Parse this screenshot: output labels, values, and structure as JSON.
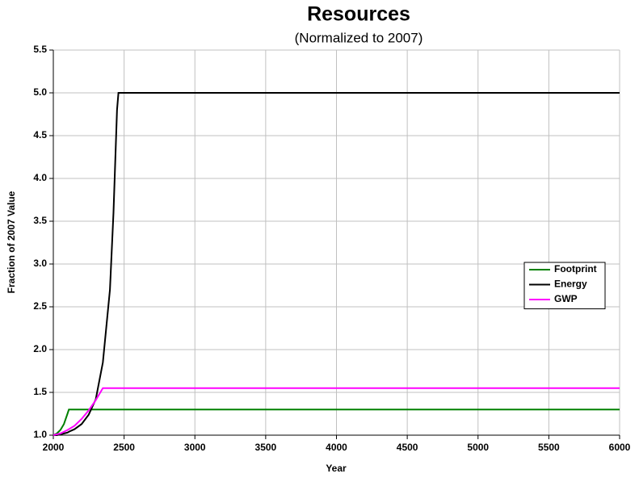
{
  "chart_data": {
    "type": "line",
    "title": "Resources",
    "subtitle": "(Normalized to 2007)",
    "x_label": "Year",
    "y_label": "Fraction of 2007 Value",
    "x": [
      2000,
      2025,
      2050,
      2075,
      2100,
      2110,
      2150,
      2200,
      2250,
      2300,
      2350,
      2400,
      2425,
      2450,
      2460,
      2500,
      6000
    ],
    "series": [
      {
        "name": "Footprint",
        "color": "#008000",
        "values": [
          1.0,
          1.02,
          1.06,
          1.13,
          1.25,
          1.3,
          1.3,
          1.3,
          1.3,
          1.3,
          1.3,
          1.3,
          1.3,
          1.3,
          1.3,
          1.3,
          1.3
        ]
      },
      {
        "name": "Energy",
        "color": "#000000",
        "values": [
          1.0,
          1.0,
          1.01,
          1.02,
          1.03,
          1.04,
          1.07,
          1.13,
          1.24,
          1.42,
          1.85,
          2.7,
          3.6,
          4.8,
          5.0,
          5.0,
          5.0
        ]
      },
      {
        "name": "GWP",
        "color": "#ff00ff",
        "values": [
          1.0,
          1.01,
          1.02,
          1.04,
          1.06,
          1.07,
          1.11,
          1.19,
          1.29,
          1.41,
          1.55,
          1.55,
          1.55,
          1.55,
          1.55,
          1.55,
          1.55
        ]
      }
    ],
    "xlim": [
      2000,
      6000
    ],
    "xticks": [
      2000,
      2500,
      3000,
      3500,
      4000,
      4500,
      5000,
      5500,
      6000
    ],
    "ylim": [
      1,
      5.5
    ],
    "yticks": [
      {
        "value": 1,
        "label": "1.0"
      },
      1.5,
      {
        "value": 2,
        "label": "2.0"
      },
      2.5,
      {
        "value": 3,
        "label": "3.0"
      },
      3.5,
      {
        "value": 4,
        "label": "4.0"
      },
      4.5,
      {
        "value": 5,
        "label": "5.0"
      },
      5.5
    ],
    "grid": true,
    "legend": "right"
  }
}
